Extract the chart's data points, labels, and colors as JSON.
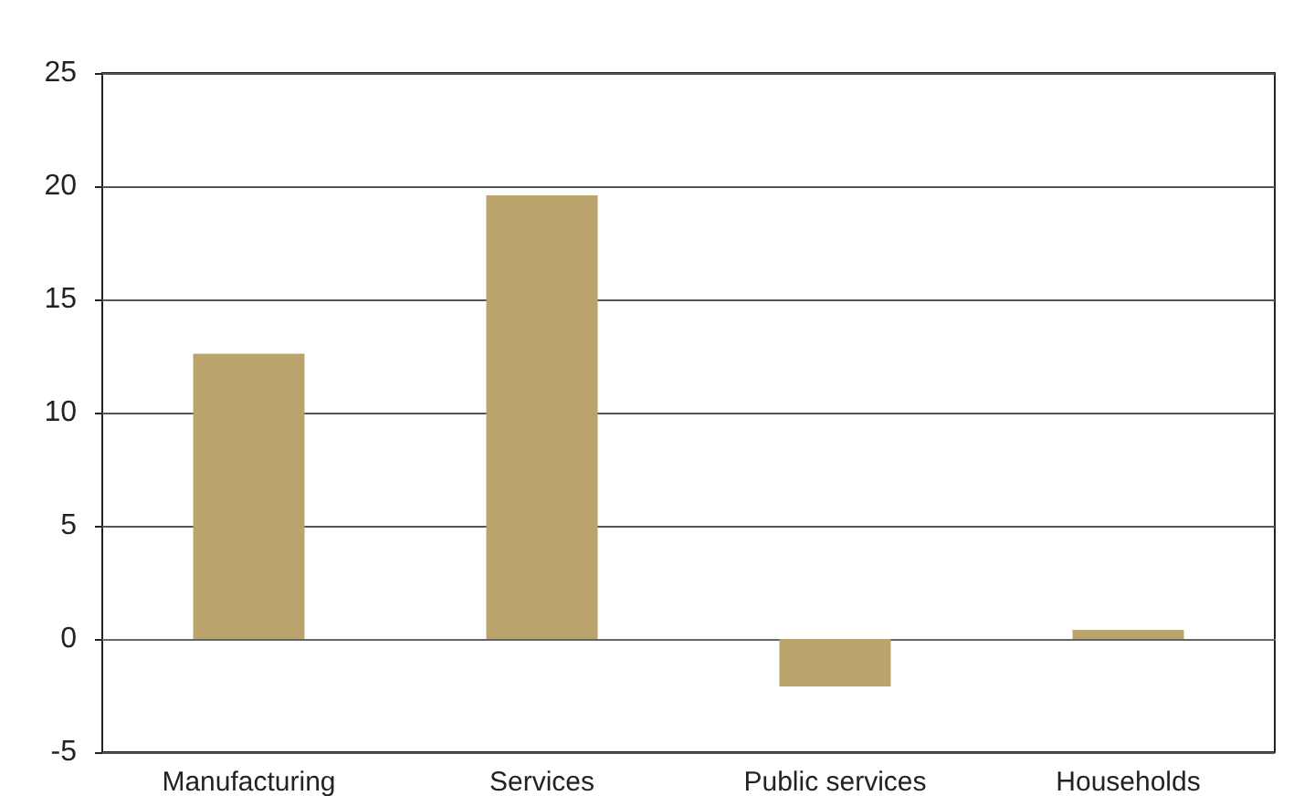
{
  "chart_data": {
    "type": "bar",
    "categories": [
      "Manufacturing",
      "Services",
      "Public services",
      "Households"
    ],
    "values": [
      12.6,
      19.6,
      -2.1,
      0.4
    ],
    "color": "#bba36c",
    "ylim": [
      -5,
      25
    ],
    "yticks": [
      -5,
      0,
      5,
      10,
      15,
      20,
      25
    ],
    "grid": "y"
  }
}
